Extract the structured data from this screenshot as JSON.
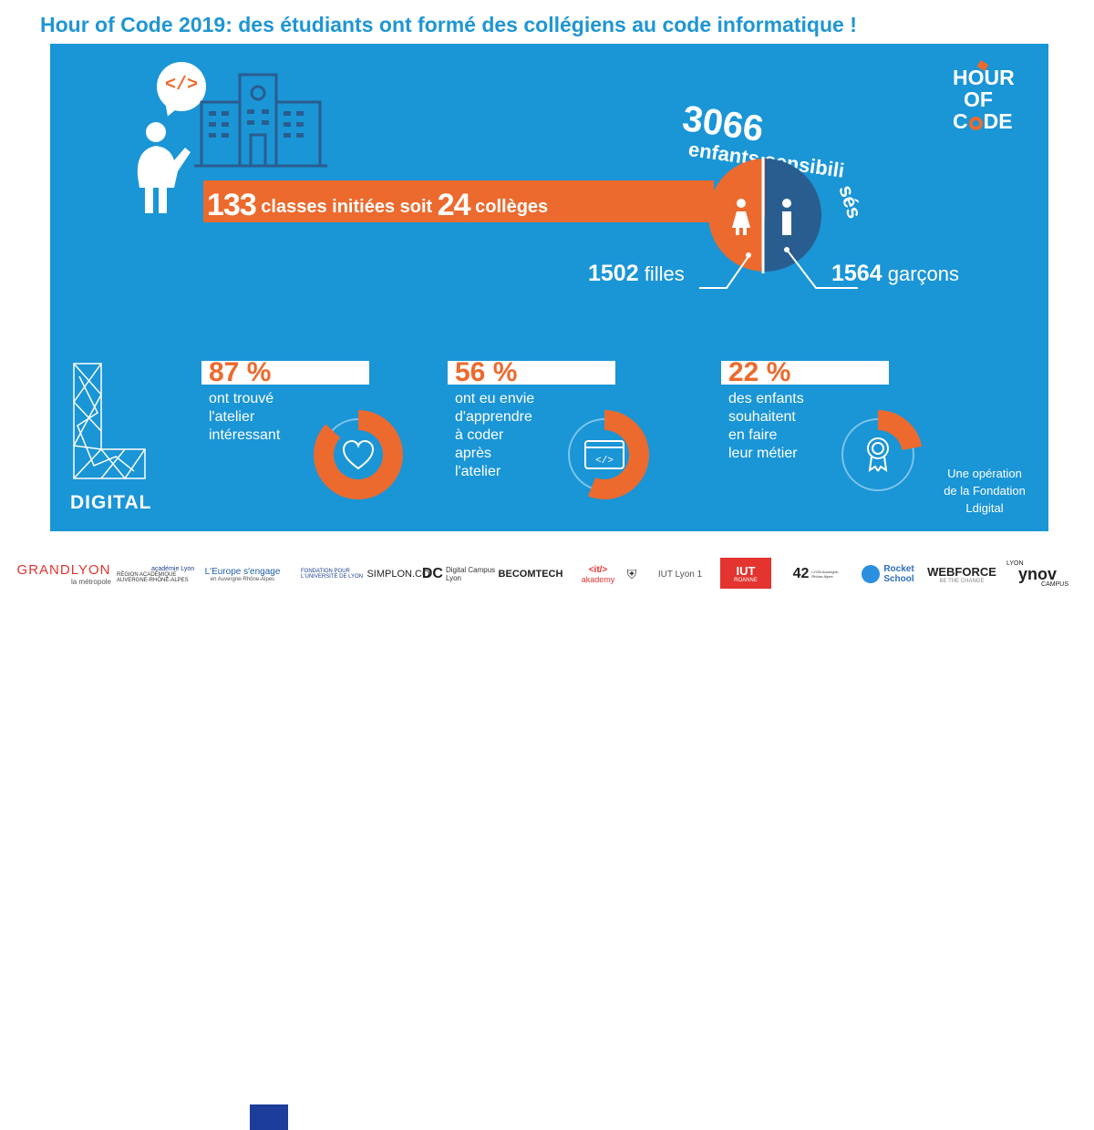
{
  "title": "Hour of Code 2019: des étudiants ont formé des collégiens au code informatique !",
  "colors": {
    "panel": "#1a95d6",
    "accent": "#ec6a2e",
    "dark_blue": "#2a5d8f",
    "white": "#ffffff",
    "title": "#1f96d3"
  },
  "speech_bubble": {
    "code_tag": "</>"
  },
  "classes": {
    "count": "133",
    "label_mid": "classes initiées soit",
    "colleges": "24",
    "label_end": "collèges"
  },
  "children": {
    "total": "3066",
    "label_a": "enfants sensibili",
    "label_b": "sés",
    "girls": {
      "count": "1502",
      "label": "filles",
      "value": 1502
    },
    "boys": {
      "count": "1564",
      "label": "garçons",
      "value": 1564
    }
  },
  "hour_of_code_logo": {
    "line1": "HOUR",
    "line2": "OF",
    "line3_a": "C",
    "line3_b": "DE"
  },
  "ldigital_logo": {
    "text": "DIGITAL"
  },
  "stats": [
    {
      "percent": "87 %",
      "value": 87,
      "desc_lines": [
        "ont trouvé",
        "l'atelier",
        "intéressant"
      ],
      "icon": "heart-icon"
    },
    {
      "percent": "56 %",
      "value": 56,
      "desc_lines": [
        "ont eu envie",
        "d'apprendre",
        "à coder",
        "après",
        "l'atelier"
      ],
      "icon": "code-window-icon",
      "icon_text": "</>"
    },
    {
      "percent": "22 %",
      "value": 22,
      "desc_lines": [
        "des enfants",
        "souhaitent",
        "en faire",
        "leur métier"
      ],
      "icon": "award-ribbon-icon"
    }
  ],
  "operation_note": {
    "lines": [
      "Une opération",
      "de la Fondation",
      "Ldigital"
    ]
  },
  "partners": [
    {
      "name": "GRANDLYON",
      "sub": "la métropole"
    },
    {
      "name": "RÉGION ACADÉMIQUE",
      "sub": "AUVERGNE-RHÔNE-ALPES",
      "extra": "académie Lyon"
    },
    {
      "name": "L'Europe s'engage",
      "sub": "en Auvergne-Rhône-Alpes"
    },
    {
      "name": "FONDATION POUR L'UNIVERSITÉ DE LYON"
    },
    {
      "name": "SIMPLON.CO"
    },
    {
      "name": "Digital Campus",
      "sub": "Lyon",
      "mono": "DC"
    },
    {
      "name": "BECOMTECH"
    },
    {
      "name": "<it/>",
      "sub": "akademy"
    },
    {
      "name": "IUT Lyon 1"
    },
    {
      "name": "IUT",
      "sub": "ROANNE"
    },
    {
      "name": "42",
      "sub": "LYON Auvergne-Rhône-Alpes"
    },
    {
      "name": "Rocket",
      "sub": "School"
    },
    {
      "name": "WEBFORCE",
      "sub": "BE THE CHANGE"
    },
    {
      "name": "ynov",
      "sub": "CAMPUS",
      "top": "LYON"
    }
  ]
}
